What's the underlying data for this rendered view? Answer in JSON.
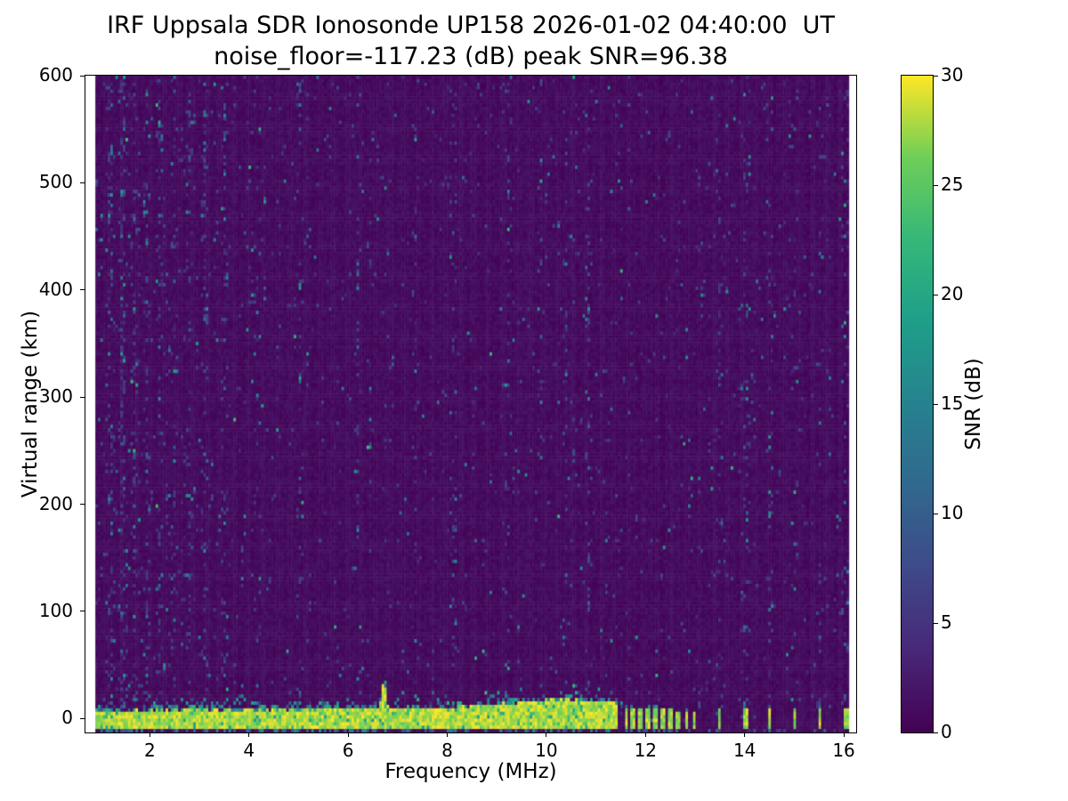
{
  "chart_data": {
    "type": "heatmap",
    "title": "IRF Uppsala SDR Ionosonde UP158 2026-01-02 04:40:00  UT",
    "subtitle": "noise_floor=-117.23 (dB) peak SNR=96.38",
    "xlabel": "Frequency (MHz)",
    "ylabel": "Virtual range (km)",
    "xlim": [
      0.7,
      16.25
    ],
    "ylim": [
      -13,
      600
    ],
    "xticks": [
      2,
      4,
      6,
      8,
      10,
      12,
      14,
      16
    ],
    "yticks": [
      0,
      100,
      200,
      300,
      400,
      500,
      600
    ],
    "data_x_range": [
      0.9,
      16.1
    ],
    "colorbar": {
      "label": "SNR (dB)",
      "ticks": [
        0,
        5,
        10,
        15,
        20,
        25,
        30
      ],
      "min": 0,
      "max": 30,
      "colormap": "viridis"
    },
    "colormap_stops": [
      "#440154",
      "#482878",
      "#3e4a89",
      "#31688e",
      "#26828e",
      "#1f9e89",
      "#35b779",
      "#6ece58",
      "#fde725"
    ],
    "background_color": "#ffffff",
    "features": {
      "ground_return_band": {
        "bottom_km": -10.5,
        "top_km_base": 5,
        "top_km_slope_per_mhz": 0.5,
        "fringe_extent_km": 14,
        "continuous_until_mhz": 11.45,
        "spike_mhz": 6.72,
        "spike_extra_km": 26,
        "enhanced_center_mhz": 10.2,
        "enhanced_extra_km": 6
      },
      "rfi_bars_mhz": [
        11.6,
        11.75,
        11.9,
        12.05,
        12.2,
        12.35,
        12.5,
        12.65,
        12.82,
        13.0,
        13.5,
        14.02,
        14.52,
        15.02,
        15.52,
        16.05
      ],
      "noise_stripe_mhz": [
        1.2,
        1.45,
        1.7,
        1.95,
        2.2,
        2.5,
        2.8,
        3.1,
        3.5,
        4.15,
        5.05,
        6.2,
        6.45,
        7.35,
        8.15,
        9.25,
        9.9,
        10.4,
        10.85,
        13.5,
        14.02,
        14.52,
        15.02,
        15.52,
        16.05
      ],
      "noise_seed": 7
    }
  }
}
